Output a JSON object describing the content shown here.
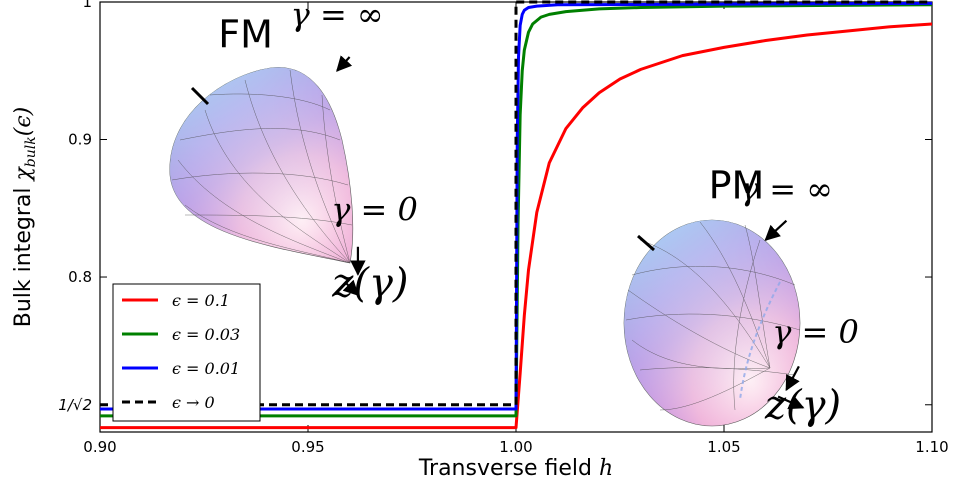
{
  "chart_data": {
    "type": "line",
    "title": "",
    "xlabel": "Transverse field ",
    "xlabel_var": "h",
    "ylabel": "Bulk integral ",
    "ylabel_sym": "χ",
    "ylabel_sub": "bulk",
    "ylabel_arg": "(ϵ)",
    "xlim": [
      0.9,
      1.1
    ],
    "ylim": [
      0.6873,
      1.0
    ],
    "x_ticks": [
      {
        "value": 0.9,
        "label": "0.90"
      },
      {
        "value": 0.95,
        "label": "0.95"
      },
      {
        "value": 1.0,
        "label": "1.00"
      },
      {
        "value": 1.05,
        "label": "1.05"
      },
      {
        "value": 1.1,
        "label": "1.10"
      }
    ],
    "y_ticks": [
      {
        "value": 0.7071,
        "label": "1/√2"
      },
      {
        "value": 0.8,
        "label": "0.8"
      },
      {
        "value": 0.9,
        "label": "0.9"
      },
      {
        "value": 1.0,
        "label": "1"
      }
    ],
    "grid": false,
    "legend_position": "lower-left",
    "series": [
      {
        "name": "ϵ = 0.1",
        "color": "#ff0000",
        "dash": "solid",
        "x": [
          0.9,
          0.999,
          1.0,
          1.001,
          1.002,
          1.003,
          1.005,
          1.008,
          1.012,
          1.016,
          1.02,
          1.025,
          1.03,
          1.04,
          1.05,
          1.06,
          1.07,
          1.08,
          1.09,
          1.1
        ],
        "y": [
          0.6905,
          0.6905,
          0.6905,
          0.73,
          0.772,
          0.805,
          0.847,
          0.883,
          0.908,
          0.923,
          0.934,
          0.944,
          0.951,
          0.961,
          0.967,
          0.972,
          0.976,
          0.979,
          0.982,
          0.984
        ]
      },
      {
        "name": "ϵ = 0.03",
        "color": "#008000",
        "dash": "solid",
        "x": [
          0.9,
          0.999,
          1.0,
          1.0005,
          1.001,
          1.0015,
          1.002,
          1.003,
          1.004,
          1.006,
          1.008,
          1.012,
          1.02,
          1.03,
          1.05,
          1.1
        ],
        "y": [
          0.699,
          0.699,
          0.699,
          0.84,
          0.918,
          0.95,
          0.965,
          0.978,
          0.984,
          0.989,
          0.991,
          0.993,
          0.995,
          0.996,
          0.997,
          0.998
        ]
      },
      {
        "name": "ϵ = 0.01",
        "color": "#0000ff",
        "dash": "solid",
        "x": [
          0.9,
          0.999,
          1.0,
          1.0003,
          1.0006,
          1.001,
          1.0015,
          1.002,
          1.003,
          1.005,
          1.01,
          1.1
        ],
        "y": [
          0.704,
          0.704,
          0.704,
          0.9,
          0.96,
          0.983,
          0.991,
          0.994,
          0.996,
          0.997,
          0.998,
          0.999
        ]
      },
      {
        "name": "ϵ → 0",
        "color": "#000000",
        "dash": "dashed",
        "x": [
          0.9,
          1.0,
          1.0,
          1.1
        ],
        "y": [
          0.7071,
          0.7071,
          1.0,
          1.0
        ]
      }
    ],
    "annotations": [
      {
        "text": "FM",
        "kind": "phase",
        "x": 0.935,
        "y": 0.967
      },
      {
        "text": "PM",
        "kind": "phase",
        "x": 1.053,
        "y": 0.857
      },
      {
        "text": "γ = ∞",
        "kind": "gamma",
        "x": 0.957,
        "y": 0.983
      },
      {
        "text": "γ = 0",
        "kind": "gamma",
        "x": 0.966,
        "y": 0.841
      },
      {
        "text": "z(γ)",
        "kind": "z",
        "x": 0.965,
        "y": 0.786
      },
      {
        "text": "γ = ∞",
        "kind": "gamma",
        "x": 1.065,
        "y": 0.856
      },
      {
        "text": "γ = 0",
        "kind": "gamma",
        "x": 1.072,
        "y": 0.752
      },
      {
        "text": "z(γ)",
        "kind": "z",
        "x": 1.069,
        "y": 0.697
      }
    ]
  }
}
